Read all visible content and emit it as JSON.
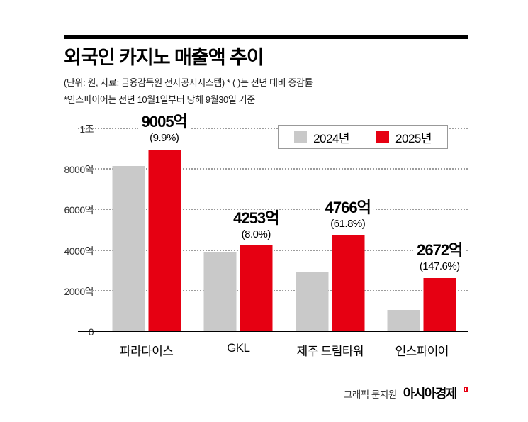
{
  "colors": {
    "accent_red": "#e60012",
    "bar_gray": "#c9c9c9",
    "text": "#000000",
    "gridline": "#9c9c9c"
  },
  "header": {
    "title": "외국인 카지노 매출액 추이",
    "subtitle1": "(단위: 원, 자료: 금융감독원 전자공시시스템)  * ( )는 전년 대비 증감률",
    "subtitle2": "*인스파이어는 전년 10월1일부터 당해 9월30일 기준"
  },
  "chart_data": {
    "type": "bar",
    "title": "외국인 카지노 매출액 추이",
    "unit": "억 원",
    "categories": [
      "파라다이스",
      "GKL",
      "제주 드림타워",
      "인스파이어"
    ],
    "series": [
      {
        "name": "2024년",
        "color": "#c9c9c9",
        "values": [
          8190,
          3940,
          2950,
          1080
        ]
      },
      {
        "name": "2025년",
        "color": "#e60012",
        "values": [
          9005,
          4253,
          4766,
          2672
        ]
      }
    ],
    "labels": [
      {
        "value": "9005억",
        "pct": "(9.9%)"
      },
      {
        "value": "4253억",
        "pct": "(8.0%)"
      },
      {
        "value": "4766억",
        "pct": "(61.8%)"
      },
      {
        "value": "2672억",
        "pct": "(147.6%)"
      }
    ],
    "y_ticks": [
      {
        "label": "1조",
        "value": 10000
      },
      {
        "label": "8000억",
        "value": 8000
      },
      {
        "label": "6000억",
        "value": 6000
      },
      {
        "label": "4000억",
        "value": 4000
      },
      {
        "label": "2000억",
        "value": 2000
      },
      {
        "label": "0",
        "value": 0
      }
    ],
    "ylim": [
      0,
      10000
    ],
    "grid": "dotted-horizontal",
    "legend_position": "top-right"
  },
  "footer": {
    "credit": "그래픽 문지원",
    "brand": "아시아경제"
  }
}
